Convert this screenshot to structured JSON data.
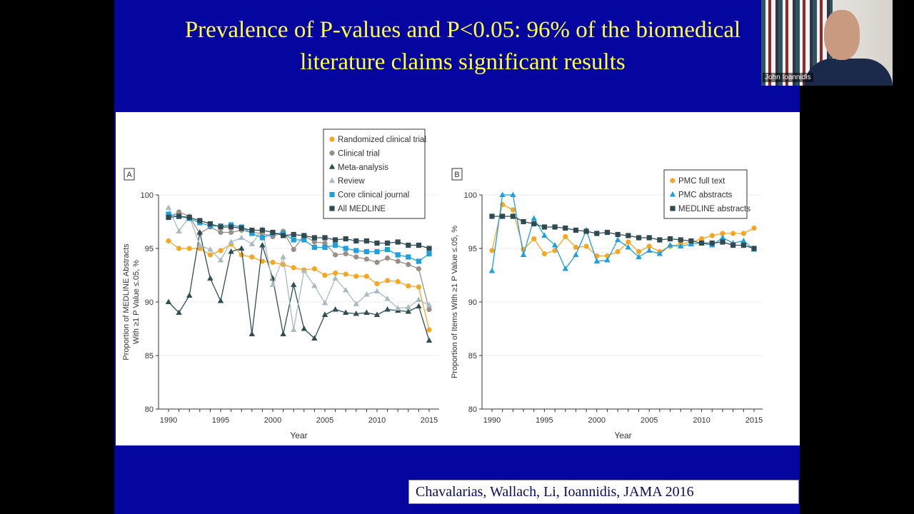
{
  "slide": {
    "title_line1": "Prevalence of P-values and P<0.05: 96% of the biomedical",
    "title_line2": "literature claims significant results",
    "citation": "Chavalarias, Wallach, Li, Ioannidis, JAMA 2016"
  },
  "video": {
    "participant_name": "John Ioannidis"
  },
  "colors": {
    "slide_background": "#0505a0",
    "title": "#ffff3c"
  },
  "chart_data": [
    {
      "panel": "A",
      "type": "line",
      "xlabel": "Year",
      "ylabel_line1": "Proportion of MEDLINE Abstracts",
      "ylabel_line2": "With ≥1 P Value ≤.05, %",
      "xlim": [
        1990,
        2015
      ],
      "ylim": [
        80,
        100
      ],
      "xticks": [
        1990,
        1995,
        2000,
        2005,
        2010,
        2015
      ],
      "yticks": [
        80,
        85,
        90,
        95,
        100
      ],
      "grid": "horizontal",
      "legend": "top-right",
      "x": [
        1990,
        1991,
        1992,
        1993,
        1994,
        1995,
        1996,
        1997,
        1998,
        1999,
        2000,
        2001,
        2002,
        2003,
        2004,
        2005,
        2006,
        2007,
        2008,
        2009,
        2010,
        2011,
        2012,
        2013,
        2014,
        2015
      ],
      "series": [
        {
          "name": "Randomized clinical trial",
          "marker": "circle",
          "color": "#f5a623",
          "values": [
            95.7,
            95.0,
            95.0,
            95.0,
            94.4,
            94.8,
            95.4,
            94.4,
            94.2,
            93.8,
            93.7,
            93.5,
            93.2,
            93.0,
            93.1,
            92.5,
            92.7,
            92.6,
            92.4,
            92.4,
            91.7,
            92.0,
            91.9,
            91.5,
            91.4,
            87.4
          ]
        },
        {
          "name": "Clinical trial",
          "marker": "circle",
          "color": "#9a8f86",
          "values": [
            97.9,
            98.4,
            98.0,
            96.4,
            97.0,
            96.5,
            96.5,
            96.7,
            96.5,
            96.4,
            96.1,
            96.6,
            94.9,
            96.2,
            95.6,
            95.5,
            94.4,
            94.5,
            94.2,
            94.0,
            93.7,
            94.1,
            93.8,
            93.5,
            93.1,
            89.3
          ]
        },
        {
          "name": "Meta-analysis",
          "marker": "triangle",
          "color": "#2f4f55",
          "values": [
            90.0,
            89.0,
            90.6,
            96.5,
            92.2,
            90.1,
            94.7,
            95.0,
            87.0,
            95.3,
            92.2,
            87.0,
            91.6,
            87.5,
            86.6,
            88.8,
            89.3,
            89.0,
            88.9,
            89.0,
            88.8,
            89.3,
            89.2,
            89.1,
            89.6,
            86.4
          ]
        },
        {
          "name": "Review",
          "marker": "triangle",
          "color": "#a9bcc0",
          "values": [
            98.8,
            96.6,
            98.0,
            95.3,
            94.9,
            93.9,
            95.6,
            96.0,
            95.4,
            96.8,
            91.6,
            94.2,
            87.4,
            92.9,
            91.5,
            89.9,
            92.2,
            91.1,
            89.8,
            90.7,
            91.0,
            90.3,
            89.4,
            89.5,
            90.2,
            89.7
          ]
        },
        {
          "name": "Core clinical journal",
          "marker": "square",
          "color": "#1ea0dc",
          "values": [
            98.2,
            98.0,
            97.8,
            97.4,
            97.1,
            97.1,
            97.2,
            97.0,
            96.4,
            96.0,
            96.4,
            96.4,
            95.8,
            95.8,
            95.1,
            95.1,
            95.3,
            95.0,
            94.8,
            94.7,
            94.7,
            94.9,
            94.4,
            94.2,
            93.8,
            94.5
          ]
        },
        {
          "name": "All MEDLINE",
          "marker": "square",
          "color": "#2f4a50",
          "values": [
            97.9,
            98.0,
            97.9,
            97.6,
            97.3,
            97.0,
            97.0,
            96.9,
            96.7,
            96.7,
            96.5,
            96.2,
            96.3,
            96.2,
            96.0,
            96.0,
            95.8,
            95.9,
            95.7,
            95.7,
            95.5,
            95.5,
            95.6,
            95.3,
            95.3,
            95.0
          ]
        }
      ]
    },
    {
      "panel": "B",
      "type": "line",
      "xlabel": "Year",
      "ylabel_line1": "Proportion of Items With ≥1 P Value ≤.05, %",
      "xlim": [
        1990,
        2015
      ],
      "ylim": [
        80,
        100
      ],
      "xticks": [
        1990,
        1995,
        2000,
        2005,
        2010,
        2015
      ],
      "yticks": [
        80,
        85,
        90,
        95,
        100
      ],
      "grid": "horizontal",
      "legend": "top-right",
      "x": [
        1990,
        1991,
        1992,
        1993,
        1994,
        1995,
        1996,
        1997,
        1998,
        1999,
        2000,
        2001,
        2002,
        2003,
        2004,
        2005,
        2006,
        2007,
        2008,
        2009,
        2010,
        2011,
        2012,
        2013,
        2014,
        2015
      ],
      "series": [
        {
          "name": "PMC full text",
          "marker": "circle",
          "color": "#f5a623",
          "values": [
            94.8,
            99.1,
            98.6,
            94.9,
            95.9,
            94.5,
            94.8,
            96.1,
            95.1,
            95.2,
            94.3,
            94.3,
            94.7,
            95.6,
            94.7,
            95.2,
            94.7,
            95.2,
            95.4,
            95.6,
            95.9,
            96.2,
            96.4,
            96.4,
            96.4,
            96.9
          ]
        },
        {
          "name": "PMC abstracts",
          "marker": "triangle",
          "color": "#1ea0dc",
          "values": [
            92.9,
            100,
            100,
            94.4,
            97.8,
            96.2,
            95.3,
            93.1,
            94.4,
            96.7,
            93.8,
            93.9,
            95.8,
            95.1,
            94.2,
            94.8,
            94.5,
            95.3,
            95.2,
            95.4,
            95.5,
            95.3,
            96.0,
            95.5,
            95.7,
            94.9
          ]
        },
        {
          "name": "MEDLINE abstracts",
          "marker": "square",
          "color": "#2f4a50",
          "values": [
            98.0,
            98.0,
            98.0,
            97.5,
            97.3,
            97.0,
            97.0,
            96.9,
            96.7,
            96.6,
            96.4,
            96.5,
            96.3,
            96.2,
            96.0,
            96.0,
            95.8,
            95.9,
            95.8,
            95.7,
            95.5,
            95.5,
            95.6,
            95.3,
            95.3,
            95.0
          ]
        }
      ]
    }
  ]
}
